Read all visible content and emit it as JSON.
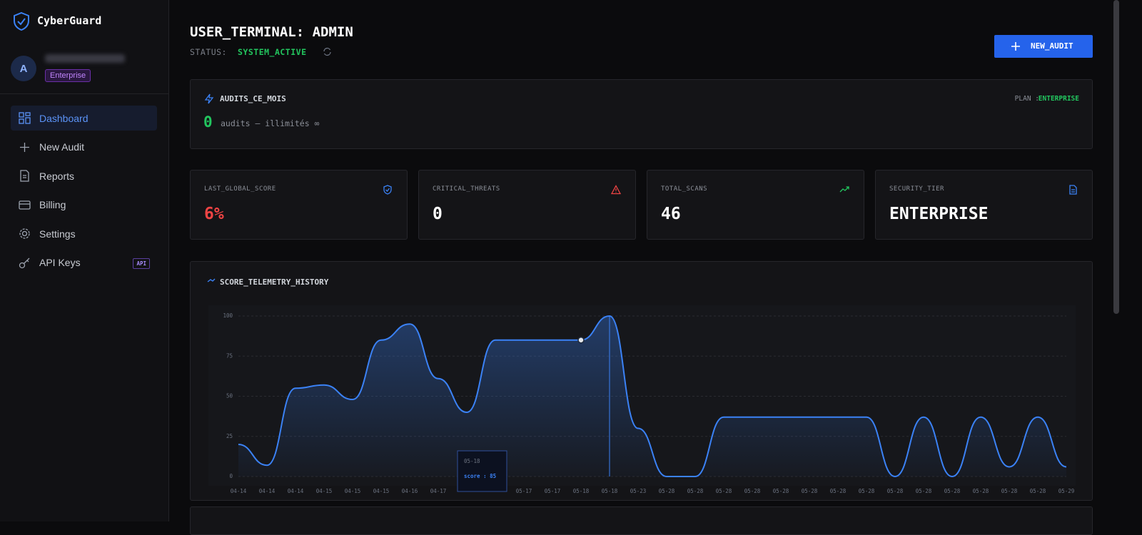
{
  "sidebar": {
    "brand": "CyberGuard",
    "avatar": "A",
    "plan_badge": "Enterprise",
    "nav": [
      "Dashboard",
      "New Audit",
      "Reports",
      "Billing",
      "Settings",
      "API Keys"
    ],
    "api_badge": "API"
  },
  "header": {
    "title": "USER_TERMINAL: ADMIN",
    "status_label": "STATUS:",
    "status": "SYSTEM_ACTIVE",
    "button": "NEW_AUDIT"
  },
  "plan_card": {
    "title": "AUDITS_CE_MOIS",
    "plan_label": "PLAN :",
    "plan": "ENTERPRISE",
    "count": 0,
    "count_text": "audits — illimités ∞"
  },
  "stats": [
    {
      "label": "LAST_GLOBAL_SCORE",
      "value": "6%"
    },
    {
      "label": "CRITICAL_THREATS",
      "value": "0"
    },
    {
      "label": "TOTAL_SCANS",
      "value": "46"
    },
    {
      "label": "SECURITY_TIER",
      "value": "ENTERPRISE"
    }
  ],
  "chart_data": {
    "type": "line",
    "title": "SCORE_TELEMETRY_HISTORY",
    "color": "#3b82f6",
    "x": [
      "04-14",
      "04-14",
      "04-14",
      "04-15",
      "04-15",
      "04-15",
      "04-16",
      "04-17",
      null,
      null,
      "05-17",
      "05-17",
      "05-18",
      "05-18",
      "05-23",
      "05-28",
      "05-28",
      "05-28",
      "05-28",
      "05-28",
      "05-28",
      "05-28",
      "05-28",
      "05-28",
      "05-28",
      "05-28",
      "05-28",
      "05-28",
      "05-28",
      "05-29"
    ],
    "values": [
      20,
      7,
      55,
      57,
      48,
      85,
      95,
      61,
      40,
      85,
      85,
      85,
      85,
      100,
      30,
      0,
      0,
      37,
      37,
      37,
      37,
      37,
      37,
      0,
      37,
      0,
      37,
      6,
      37,
      6
    ],
    "ylim": [
      0,
      100
    ],
    "yticks": [
      0,
      25,
      50,
      75,
      100
    ],
    "grid": true,
    "tooltip": {
      "x": "05-18",
      "text": "score : 85"
    }
  }
}
